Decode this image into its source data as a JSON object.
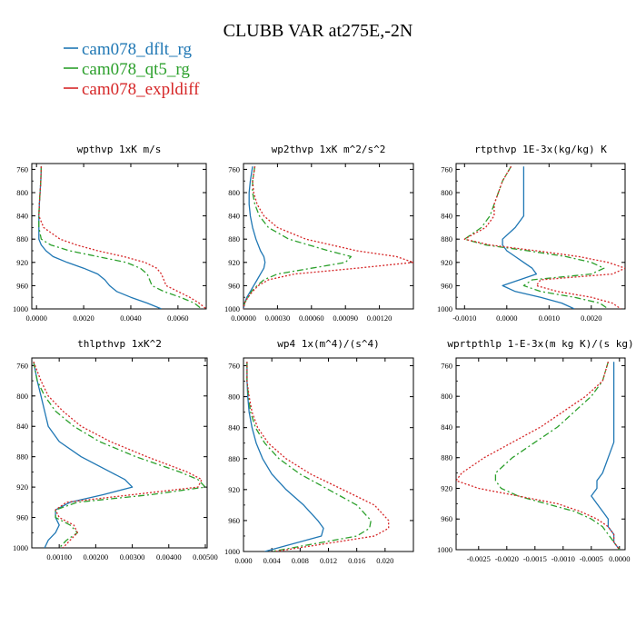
{
  "figure": {
    "title": "CLUBB VAR at275E,-2N",
    "legend": [
      {
        "label": "cam078_dflt_rg",
        "color": "#1f77b4",
        "dash": "solid"
      },
      {
        "label": "cam078_qt5_rg",
        "color": "#2ca02c",
        "dash": "dashdot"
      },
      {
        "label": "cam078_expldiff",
        "color": "#d62728",
        "dash": "dotted"
      }
    ]
  },
  "chart_data": [
    {
      "type": "line",
      "title": "wpthvp  1xK m/s",
      "xlim": [
        -0.0002,
        0.0072
      ],
      "ylim": [
        1000,
        750
      ],
      "yticks": [
        "760",
        "800",
        "840",
        "880",
        "920",
        "960",
        "1000"
      ],
      "xticks": [
        "0.0000",
        "0.0020",
        "0.0040",
        "0.0060"
      ],
      "y": [
        755,
        780,
        800,
        820,
        840,
        860,
        880,
        890,
        900,
        910,
        920,
        930,
        940,
        950,
        960,
        970,
        980,
        990,
        1000
      ],
      "series": [
        {
          "name": "cam078_dflt_rg",
          "values": [
            0.0002,
            0.00018,
            0.00015,
            0.00012,
            0.0001,
            0.0001,
            0.0001,
            0.0002,
            0.0004,
            0.0007,
            0.0013,
            0.002,
            0.0026,
            0.0029,
            0.0031,
            0.0034,
            0.004,
            0.0047,
            0.0053
          ]
        },
        {
          "name": "cam078_qt5_rg",
          "values": [
            0.0002,
            0.00018,
            0.00015,
            0.00012,
            0.0001,
            0.0001,
            0.0002,
            0.0006,
            0.0014,
            0.0026,
            0.0038,
            0.0044,
            0.0047,
            0.0048,
            0.0049,
            0.0054,
            0.0061,
            0.0067,
            0.007
          ]
        },
        {
          "name": "cam078_expldiff",
          "values": [
            0.0002,
            0.00018,
            0.00015,
            0.00012,
            0.0001,
            0.0003,
            0.001,
            0.0017,
            0.0026,
            0.0037,
            0.0046,
            0.0051,
            0.0053,
            0.0054,
            0.0055,
            0.006,
            0.0065,
            0.0069,
            0.0072
          ]
        }
      ]
    },
    {
      "type": "line",
      "title": "wp2thvp  1xK m^2/s^2",
      "xlim": [
        0.0,
        0.0015
      ],
      "ylim": [
        1000,
        750
      ],
      "yticks": [
        "760",
        "800",
        "840",
        "880",
        "920",
        "960",
        "1000"
      ],
      "xticks": [
        "0.00000",
        "0.00030",
        "0.00060",
        "0.00090",
        "0.00120"
      ],
      "y": [
        755,
        780,
        800,
        820,
        840,
        860,
        880,
        900,
        910,
        920,
        930,
        940,
        950,
        960,
        970,
        980,
        990,
        1000
      ],
      "series": [
        {
          "name": "cam078_dflt_rg",
          "values": [
            8e-05,
            6e-05,
            5e-05,
            5e-05,
            6e-05,
            8e-05,
            0.00011,
            0.00015,
            0.00018,
            0.00019,
            0.00018,
            0.00015,
            0.00012,
            9e-05,
            6e-05,
            3e-05,
            1e-05,
            0.0
          ]
        },
        {
          "name": "cam078_qt5_rg",
          "values": [
            0.0001,
            8e-05,
            8e-05,
            0.0001,
            0.00014,
            0.00022,
            0.0004,
            0.00075,
            0.00095,
            0.0009,
            0.0006,
            0.0003,
            0.00018,
            0.00012,
            7e-05,
            4e-05,
            1e-05,
            0.0
          ]
        },
        {
          "name": "cam078_expldiff",
          "values": [
            0.0001,
            8e-05,
            9e-05,
            0.00012,
            0.00018,
            0.0003,
            0.00055,
            0.001,
            0.00135,
            0.0015,
            0.001,
            0.00045,
            0.00022,
            0.00013,
            8e-05,
            4e-05,
            1e-05,
            0.0
          ]
        }
      ]
    },
    {
      "type": "line",
      "title": "rtpthvp  1E-3x(kg/kg) K",
      "xlim": [
        -0.0012,
        0.0028
      ],
      "ylim": [
        1000,
        750
      ],
      "yticks": [
        "760",
        "800",
        "840",
        "880",
        "920",
        "960",
        "1000"
      ],
      "xticks": [
        "-0.0010",
        "0.0000",
        "0.0010",
        "0.0020"
      ],
      "y": [
        755,
        780,
        800,
        820,
        840,
        860,
        880,
        890,
        900,
        910,
        920,
        930,
        940,
        950,
        960,
        970,
        980,
        990,
        1000
      ],
      "series": [
        {
          "name": "cam078_dflt_rg",
          "values": [
            0.0004,
            0.0004,
            0.0004,
            0.0004,
            0.0004,
            0.0002,
            -0.0001,
            -0.0001,
            0.0,
            0.0002,
            0.0004,
            0.0006,
            0.0007,
            0.0003,
            -0.0001,
            0.0002,
            0.0008,
            0.0013,
            0.0016
          ]
        },
        {
          "name": "cam078_qt5_rg",
          "values": [
            0.0001,
            -0.0001,
            -0.0002,
            -0.0003,
            -0.0004,
            -0.0006,
            -0.001,
            -0.0005,
            0.0005,
            0.0014,
            0.002,
            0.0023,
            0.002,
            0.0006,
            0.0004,
            0.0008,
            0.0016,
            0.0022,
            0.0024
          ]
        },
        {
          "name": "cam078_expldiff",
          "values": [
            0.0001,
            -0.0001,
            -0.0002,
            -0.0003,
            -0.0003,
            -0.0005,
            -0.001,
            -0.0004,
            0.0007,
            0.0017,
            0.0024,
            0.0028,
            0.0025,
            0.0008,
            0.0007,
            0.0012,
            0.002,
            0.0025,
            0.0027
          ]
        }
      ]
    },
    {
      "type": "line",
      "title": "thlpthvp  1xK^2",
      "xlim": [
        0.00025,
        0.00505
      ],
      "ylim": [
        1000,
        750
      ],
      "yticks": [
        "760",
        "800",
        "840",
        "880",
        "920",
        "960",
        "1000"
      ],
      "xticks": [
        "0.00100",
        "0.00200",
        "0.00300",
        "0.00400",
        "0.00500"
      ],
      "y": [
        755,
        780,
        800,
        820,
        840,
        860,
        880,
        900,
        910,
        920,
        930,
        940,
        950,
        960,
        970,
        980,
        990,
        1000
      ],
      "series": [
        {
          "name": "cam078_dflt_rg",
          "values": [
            0.0003,
            0.0004,
            0.0005,
            0.0006,
            0.0007,
            0.001,
            0.0016,
            0.0024,
            0.0028,
            0.003,
            0.0022,
            0.0013,
            0.0009,
            0.0009,
            0.001,
            0.0009,
            0.0007,
            0.0006
          ]
        },
        {
          "name": "cam078_qt5_rg",
          "values": [
            0.0003,
            0.0004,
            0.0006,
            0.0009,
            0.0014,
            0.0021,
            0.0031,
            0.0043,
            0.0048,
            0.005,
            0.0035,
            0.0015,
            0.0009,
            0.0009,
            0.0013,
            0.0015,
            0.0012,
            0.001
          ]
        },
        {
          "name": "cam078_expldiff",
          "values": [
            0.0003,
            0.0005,
            0.0007,
            0.0011,
            0.0016,
            0.0024,
            0.0034,
            0.0045,
            0.0049,
            0.0048,
            0.003,
            0.0012,
            0.0009,
            0.001,
            0.0014,
            0.0015,
            0.0013,
            0.0011
          ]
        }
      ]
    },
    {
      "type": "line",
      "title": "wp4  1x(m^4)/(s^4)",
      "xlim": [
        0.0,
        0.024
      ],
      "ylim": [
        1000,
        750
      ],
      "yticks": [
        "760",
        "800",
        "840",
        "880",
        "920",
        "960",
        "1000"
      ],
      "xticks": [
        "0.000",
        "0.004",
        "0.008",
        "0.012",
        "0.016",
        "0.020"
      ],
      "y": [
        755,
        780,
        800,
        820,
        840,
        860,
        880,
        900,
        920,
        940,
        960,
        970,
        980,
        990,
        1000
      ],
      "series": [
        {
          "name": "cam078_dflt_rg",
          "values": [
            0.0005,
            0.0005,
            0.0006,
            0.0008,
            0.0012,
            0.0018,
            0.0027,
            0.004,
            0.006,
            0.0085,
            0.0105,
            0.0113,
            0.011,
            0.007,
            0.003
          ]
        },
        {
          "name": "cam078_qt5_rg",
          "values": [
            0.0005,
            0.0005,
            0.0007,
            0.001,
            0.0017,
            0.003,
            0.005,
            0.008,
            0.012,
            0.016,
            0.018,
            0.0178,
            0.016,
            0.01,
            0.004
          ]
        },
        {
          "name": "cam078_expldiff",
          "values": [
            0.0005,
            0.0005,
            0.0008,
            0.0012,
            0.002,
            0.0035,
            0.006,
            0.0095,
            0.014,
            0.0185,
            0.0205,
            0.0205,
            0.0185,
            0.0115,
            0.0045
          ]
        }
      ]
    },
    {
      "type": "line",
      "title": "wprtpthlp  1-E-3x(m kg K)/(s kg)",
      "xlim": [
        -0.0029,
        0.0001
      ],
      "ylim": [
        1000,
        750
      ],
      "yticks": [
        "760",
        "800",
        "840",
        "880",
        "920",
        "960",
        "1000"
      ],
      "xticks": [
        "-0.0025",
        "-0.0020",
        "-0.0015",
        "-0.0010",
        "-0.0005",
        "0.0000"
      ],
      "y": [
        755,
        780,
        800,
        820,
        840,
        860,
        880,
        900,
        910,
        920,
        930,
        940,
        950,
        960,
        970,
        980,
        990,
        1000
      ],
      "series": [
        {
          "name": "cam078_dflt_rg",
          "values": [
            -0.0001,
            -0.0001,
            -0.0001,
            -0.0001,
            -0.0001,
            -0.0001,
            -0.0002,
            -0.0003,
            -0.0004,
            -0.0004,
            -0.0005,
            -0.0004,
            -0.0003,
            -0.0002,
            -0.0002,
            -0.0001,
            -0.0001,
            0.0
          ]
        },
        {
          "name": "cam078_qt5_rg",
          "values": [
            -0.0002,
            -0.0003,
            -0.0005,
            -0.0008,
            -0.0011,
            -0.0015,
            -0.0019,
            -0.0022,
            -0.0022,
            -0.0021,
            -0.0018,
            -0.0013,
            -0.0008,
            -0.0005,
            -0.0003,
            -0.0002,
            -0.0001,
            0.0
          ]
        },
        {
          "name": "cam078_expldiff",
          "values": [
            -0.0002,
            -0.0003,
            -0.0006,
            -0.001,
            -0.0014,
            -0.0019,
            -0.0024,
            -0.0028,
            -0.0029,
            -0.0025,
            -0.0018,
            -0.0011,
            -0.0007,
            -0.0004,
            -0.0002,
            -0.0001,
            -0.0001,
            0.0
          ]
        }
      ]
    }
  ]
}
